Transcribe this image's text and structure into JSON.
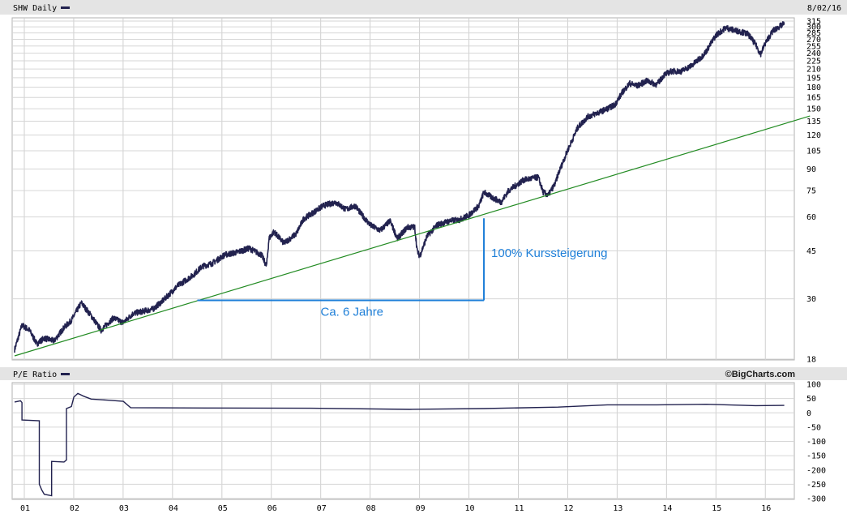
{
  "chart_data": [
    {
      "type": "line",
      "title": "SHW Daily",
      "date": "8/02/16",
      "y_scale": "log",
      "ylim": [
        18,
        315
      ],
      "y_ticks": [
        18,
        30,
        45,
        60,
        75,
        90,
        105,
        120,
        135,
        150,
        165,
        180,
        195,
        210,
        225,
        240,
        255,
        270,
        285,
        300,
        315
      ],
      "x_tick_labels": [
        "01",
        "02",
        "03",
        "04",
        "05",
        "06",
        "07",
        "08",
        "09",
        "10",
        "11",
        "12",
        "13",
        "14",
        "15",
        "16"
      ],
      "grid": true,
      "series": [
        {
          "name": "SHW",
          "color": "#22224f",
          "points": [
            [
              2001.0,
              19.5
            ],
            [
              2001.15,
              24
            ],
            [
              2001.3,
              23
            ],
            [
              2001.45,
              20.5
            ],
            [
              2001.6,
              21.5
            ],
            [
              2001.8,
              21
            ],
            [
              2002.0,
              23.5
            ],
            [
              2002.15,
              25
            ],
            [
              2002.35,
              29
            ],
            [
              2002.55,
              26
            ],
            [
              2002.75,
              23
            ],
            [
              2002.9,
              24.5
            ],
            [
              2003.0,
              25.5
            ],
            [
              2003.2,
              24.5
            ],
            [
              2003.4,
              26.5
            ],
            [
              2003.6,
              27
            ],
            [
              2003.8,
              27.5
            ],
            [
              2004.0,
              29.5
            ],
            [
              2004.3,
              33.5
            ],
            [
              2004.6,
              36.5
            ],
            [
              2004.8,
              39.5
            ],
            [
              2005.0,
              40.5
            ],
            [
              2005.25,
              43.5
            ],
            [
              2005.5,
              44.5
            ],
            [
              2005.75,
              46
            ],
            [
              2006.0,
              43.5
            ],
            [
              2006.1,
              39.5
            ],
            [
              2006.15,
              50
            ],
            [
              2006.25,
              53
            ],
            [
              2006.45,
              48
            ],
            [
              2006.7,
              52
            ],
            [
              2006.85,
              59
            ],
            [
              2007.0,
              61.5
            ],
            [
              2007.25,
              66
            ],
            [
              2007.5,
              68
            ],
            [
              2007.7,
              64
            ],
            [
              2007.9,
              66
            ],
            [
              2008.0,
              62
            ],
            [
              2008.2,
              56
            ],
            [
              2008.4,
              53.5
            ],
            [
              2008.6,
              58
            ],
            [
              2008.75,
              50
            ],
            [
              2008.95,
              55
            ],
            [
              2009.1,
              55
            ],
            [
              2009.15,
              45
            ],
            [
              2009.2,
              43
            ],
            [
              2009.35,
              51
            ],
            [
              2009.55,
              56
            ],
            [
              2009.8,
              58
            ],
            [
              2010.0,
              58.5
            ],
            [
              2010.2,
              61
            ],
            [
              2010.4,
              66
            ],
            [
              2010.5,
              74
            ],
            [
              2010.65,
              71
            ],
            [
              2010.85,
              68
            ],
            [
              2011.0,
              75
            ],
            [
              2011.3,
              82
            ],
            [
              2011.6,
              84
            ],
            [
              2011.7,
              74
            ],
            [
              2011.8,
              72
            ],
            [
              2011.95,
              80
            ],
            [
              2012.0,
              86
            ],
            [
              2012.2,
              106
            ],
            [
              2012.4,
              128
            ],
            [
              2012.6,
              140
            ],
            [
              2012.85,
              146
            ],
            [
              2013.0,
              150
            ],
            [
              2013.15,
              155
            ],
            [
              2013.3,
              172
            ],
            [
              2013.45,
              186
            ],
            [
              2013.6,
              182
            ],
            [
              2013.8,
              190
            ],
            [
              2014.0,
              184
            ],
            [
              2014.15,
              200
            ],
            [
              2014.3,
              206
            ],
            [
              2014.5,
              206
            ],
            [
              2014.7,
              216
            ],
            [
              2014.9,
              232
            ],
            [
              2015.0,
              244
            ],
            [
              2015.2,
              280
            ],
            [
              2015.4,
              298
            ],
            [
              2015.55,
              292
            ],
            [
              2015.7,
              288
            ],
            [
              2015.85,
              282
            ],
            [
              2016.0,
              258
            ],
            [
              2016.1,
              238
            ],
            [
              2016.2,
              262
            ],
            [
              2016.35,
              290
            ],
            [
              2016.5,
              302
            ],
            [
              2016.58,
              308
            ]
          ]
        },
        {
          "color": "#228b22",
          "points": [
            [
              2001.0,
              18.5
            ],
            [
              2017.1,
              141
            ]
          ]
        }
      ],
      "annotations": [
        "100% Kurssteigerung",
        "Ca. 6 Jahre"
      ],
      "annotation_color": "#1e7fd8"
    },
    {
      "type": "line",
      "title": "P/E Ratio",
      "ylim": [
        -300,
        100
      ],
      "y_ticks": [
        -300,
        -250,
        -200,
        -150,
        -100,
        -50,
        0,
        50,
        100
      ],
      "grid": true,
      "series": [
        {
          "color": "#22224f",
          "points": [
            [
              2001.0,
              38
            ],
            [
              2001.12,
              42
            ],
            [
              2001.15,
              36
            ],
            [
              2001.15,
              -25
            ],
            [
              2001.5,
              -28
            ],
            [
              2001.5,
              -250
            ],
            [
              2001.55,
              -270
            ],
            [
              2001.6,
              -285
            ],
            [
              2001.75,
              -290
            ],
            [
              2001.75,
              -170
            ],
            [
              2002.0,
              -172
            ],
            [
              2002.05,
              -165
            ],
            [
              2002.05,
              15
            ],
            [
              2002.15,
              22
            ],
            [
              2002.2,
              55
            ],
            [
              2002.28,
              68
            ],
            [
              2002.4,
              58
            ],
            [
              2002.55,
              48
            ],
            [
              2002.9,
              44
            ],
            [
              2003.2,
              40
            ],
            [
              2003.35,
              18
            ],
            [
              2005.0,
              17
            ],
            [
              2007.0,
              16
            ],
            [
              2009.0,
              12
            ],
            [
              2010.5,
              15
            ],
            [
              2012.0,
              20
            ],
            [
              2013.0,
              28
            ],
            [
              2014.0,
              28
            ],
            [
              2015.0,
              30
            ],
            [
              2016.0,
              25
            ],
            [
              2016.58,
              26
            ]
          ]
        }
      ],
      "source": "©BigCharts.com"
    }
  ]
}
